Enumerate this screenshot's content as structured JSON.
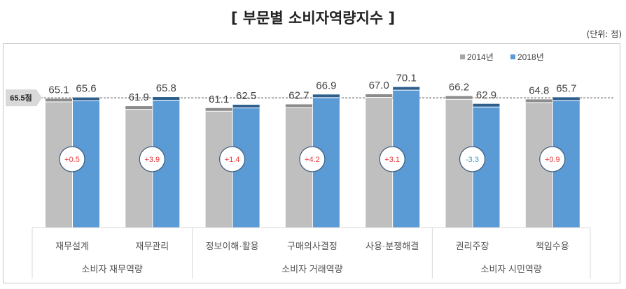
{
  "chart_data": {
    "type": "bar",
    "title": "[ 부문별 소비자역량지수 ]",
    "unit_label": "(단위: 점)",
    "categories": [
      "재무설계",
      "재무관리",
      "정보이해·활용",
      "구매의사결정",
      "사용·분쟁해결",
      "권리주장",
      "책임수용"
    ],
    "groups": [
      {
        "label": "소비자 재무역량",
        "span": 2
      },
      {
        "label": "소비자 거래역량",
        "span": 3
      },
      {
        "label": "소비자 시민역량",
        "span": 2
      }
    ],
    "series": [
      {
        "name": "2014년",
        "color": "#bfbfbf",
        "cap_color": "#8c8c8c",
        "values": [
          65.1,
          61.9,
          61.1,
          62.7,
          67.0,
          66.2,
          64.8
        ]
      },
      {
        "name": "2018년",
        "color": "#5b9bd5",
        "cap_color": "#2e5e8c",
        "values": [
          65.6,
          65.8,
          62.5,
          66.9,
          70.1,
          62.9,
          65.7
        ]
      }
    ],
    "value_labels": [
      [
        "65.1",
        "61.9",
        "61.1",
        "62.7",
        "67.0",
        "66.2",
        "64.8"
      ],
      [
        "65.6",
        "65.8",
        "62.5",
        "66.9",
        "70.1",
        "62.9",
        "65.7"
      ]
    ],
    "changes": [
      "+0.5",
      "+3.9",
      "+1.4",
      "+4.2",
      "+3.1",
      "-3.3",
      "+0.9"
    ],
    "change_colors": {
      "positive": "#e8383d",
      "negative": "#4a9bc9"
    },
    "reference_line": {
      "value": 65.5,
      "label": "65.5점"
    },
    "ylim": [
      10,
      75
    ],
    "legend_position": "top-right",
    "grid": false
  }
}
